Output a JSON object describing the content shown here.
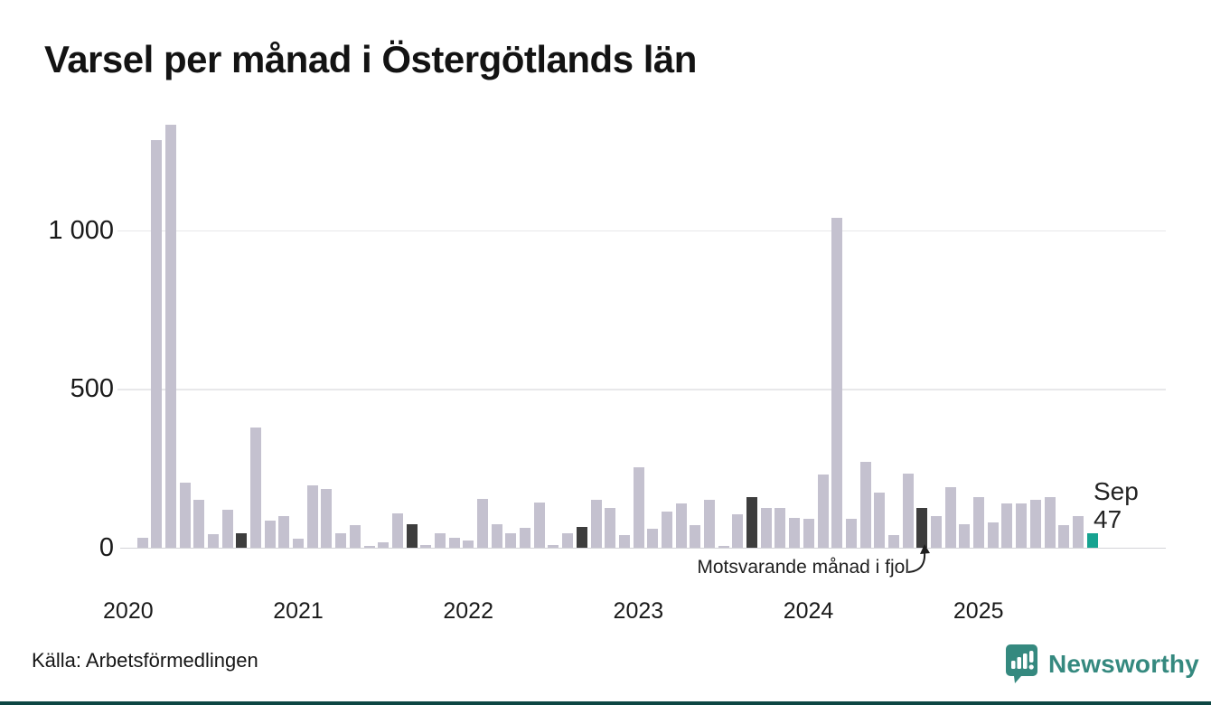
{
  "title": "Varsel per månad i Östergötlands län",
  "source": "Källa: Arbetsförmedlingen",
  "annotation": {
    "text": "Motsvarande månad i fjol"
  },
  "last_point_label": {
    "month": "Sep",
    "value": "47"
  },
  "brand": {
    "name": "Newsworthy"
  },
  "colors": {
    "bar": "#c4c1cf",
    "highlight_dark": "#3d3d3d",
    "highlight_current": "#17a391",
    "brand_teal": "#35897f",
    "bottom_strip": "#0d4643"
  },
  "chart_data": {
    "type": "bar",
    "title": "Varsel per månad i Östergötlands län",
    "x_start": "2020-01",
    "x_end": "2025-09",
    "grid": "horizontal",
    "legend": "none",
    "ylim": [
      0,
      1400
    ],
    "ytick_values": [
      0,
      500,
      1000
    ],
    "ytick_labels": [
      "0",
      "500",
      "1 000"
    ],
    "years": [
      {
        "year": "2020",
        "values": [
          0,
          30,
          1285,
          1335,
          205,
          150,
          42,
          120,
          47,
          380,
          85,
          100
        ]
      },
      {
        "year": "2021",
        "values": [
          28,
          197,
          185,
          47,
          70,
          5,
          18,
          108,
          73,
          9,
          47,
          30
        ]
      },
      {
        "year": "2022",
        "values": [
          22,
          155,
          74,
          46,
          63,
          143,
          9,
          46,
          65,
          150,
          126,
          41
        ]
      },
      {
        "year": "2023",
        "values": [
          255,
          60,
          114,
          140,
          70,
          150,
          5,
          105,
          160,
          125,
          125,
          95
        ]
      },
      {
        "year": "2024",
        "values": [
          90,
          230,
          1040,
          90,
          270,
          175,
          40,
          235,
          125,
          100,
          190,
          75
        ]
      },
      {
        "year": "2025",
        "values": [
          160,
          80,
          140,
          140,
          150,
          160,
          70,
          100,
          47
        ]
      }
    ],
    "highlighted_dark_months": [
      "2020-09",
      "2021-09",
      "2022-09",
      "2023-09",
      "2024-09"
    ],
    "highlighted_current_month": "2025-09",
    "current_month_label": "Sep",
    "current_month_value": 47
  }
}
